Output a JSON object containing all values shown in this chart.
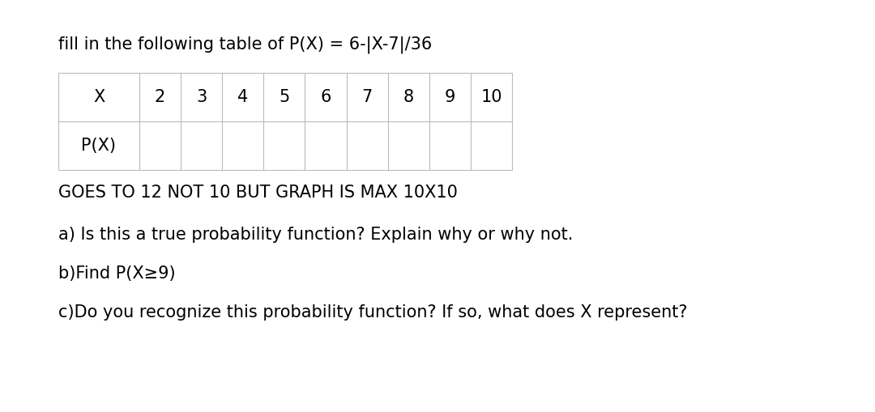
{
  "title": "fill in the following table of P(X) = 6-|X-7|/36",
  "x_values": [
    "X",
    "2",
    "3",
    "4",
    "5",
    "6",
    "7",
    "8",
    "9",
    "10"
  ],
  "row2_label": "P(X)",
  "note": "GOES TO 12 NOT 10 BUT GRAPH IS MAX 10X10",
  "question_a": "a) Is this a true probability function? Explain why or why not.",
  "question_b": "b)Find P(X≥9)",
  "question_c": "c)Do you recognize this probability function? If so, what does X represent?",
  "background_color": "#ffffff",
  "text_color": "#000000",
  "table_border_color": "#bbbbbb",
  "title_fontsize": 15,
  "table_fontsize": 15,
  "note_fontsize": 15,
  "question_fontsize": 15,
  "fig_width": 10.8,
  "fig_height": 5.09
}
